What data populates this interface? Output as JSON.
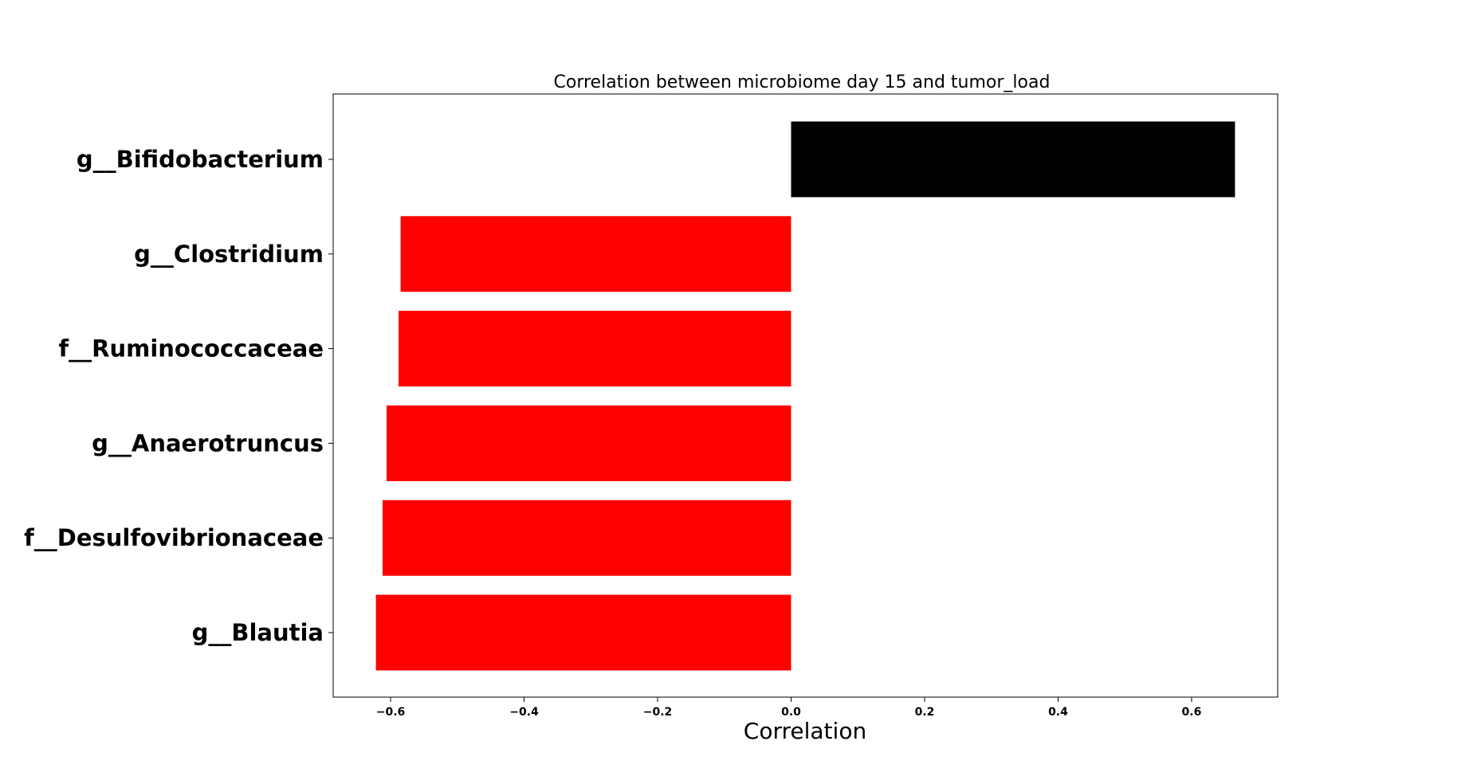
{
  "chart_data": {
    "type": "bar",
    "orientation": "horizontal",
    "title": "Correlation between microbiome day 15 and tumor_load",
    "xlabel": "Correlation",
    "ylabel": "",
    "categories": [
      "g__Bifidobacterium",
      "g__Clostridium",
      "f__Ruminococcaceae",
      "g__Anaerotruncus",
      "f__Desulfovibrionaceae",
      "g__Blautia"
    ],
    "values": [
      0.665,
      -0.585,
      -0.588,
      -0.606,
      -0.612,
      -0.622
    ],
    "colors": [
      "#000000",
      "#ff0000",
      "#ff0000",
      "#ff0000",
      "#ff0000",
      "#ff0000"
    ],
    "xlim": [
      -0.686,
      0.729
    ],
    "xticks": [
      -0.6,
      -0.4,
      -0.2,
      0.0,
      0.2,
      0.4,
      0.6
    ],
    "xtick_labels": [
      "−0.6",
      "−0.4",
      "−0.2",
      "0.0",
      "0.2",
      "0.4",
      "0.6"
    ],
    "grid": false,
    "legend": "none"
  }
}
